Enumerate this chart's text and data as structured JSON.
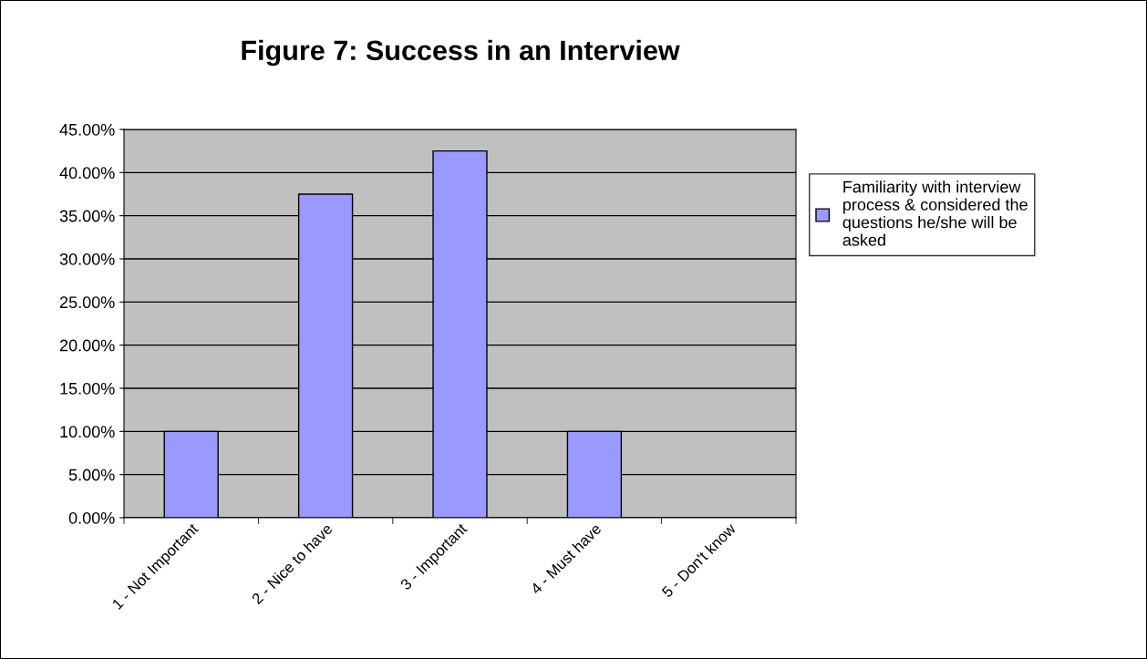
{
  "chart_data": {
    "type": "bar",
    "title": "Figure 7: Success in an Interview",
    "categories": [
      "1 - Not Important",
      "2 - Nice to have",
      "3 - Important",
      "4 - Must have",
      "5 - Don't know"
    ],
    "series": [
      {
        "name": "Familiarity with interview\nprocess & considered the\nquestions he/she will be\nasked",
        "color": "#9999ff",
        "values": [
          10,
          37.5,
          42.5,
          10,
          0
        ]
      }
    ],
    "ylim": [
      0,
      45
    ],
    "yticks": [
      {
        "value": 0,
        "label": "0.00%"
      },
      {
        "value": 5,
        "label": "5.00%"
      },
      {
        "value": 10,
        "label": "10.00%"
      },
      {
        "value": 15,
        "label": "15.00%"
      },
      {
        "value": 20,
        "label": "20.00%"
      },
      {
        "value": 25,
        "label": "25.00%"
      },
      {
        "value": 30,
        "label": "30.00%"
      },
      {
        "value": 35,
        "label": "35.00%"
      },
      {
        "value": 40,
        "label": "40.00%"
      },
      {
        "value": 45,
        "label": "45.00%"
      }
    ],
    "grid": "y",
    "legend": "right"
  }
}
